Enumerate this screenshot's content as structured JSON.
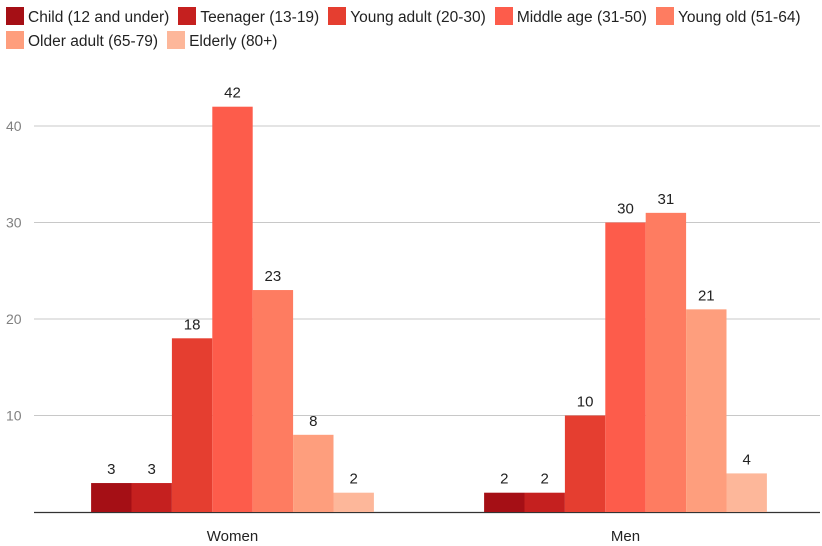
{
  "chart_data": {
    "type": "bar",
    "title": "",
    "xlabel": "",
    "ylabel": "",
    "categories": [
      "Women",
      "Men"
    ],
    "series": [
      {
        "name": "Child (12 and under)",
        "color": "#a50f15",
        "values": [
          3,
          2
        ]
      },
      {
        "name": "Teenager (13-19)",
        "color": "#c5201f",
        "values": [
          3,
          2
        ]
      },
      {
        "name": "Young adult (20-30)",
        "color": "#e53e30",
        "values": [
          18,
          10
        ]
      },
      {
        "name": "Middle age (31-50)",
        "color": "#fd5c4b",
        "values": [
          42,
          30
        ]
      },
      {
        "name": "Young old (51-64)",
        "color": "#fe7c61",
        "values": [
          23,
          31
        ]
      },
      {
        "name": "Older adult (65-79)",
        "color": "#fe9e7d",
        "values": [
          8,
          21
        ]
      },
      {
        "name": "Elderly (80+)",
        "color": "#fdb79a",
        "values": [
          2,
          4
        ]
      }
    ],
    "yticks": [
      10,
      20,
      30,
      40
    ],
    "ylim": [
      0,
      44
    ],
    "grid": true,
    "legend_position": "top",
    "data_labels": true
  }
}
